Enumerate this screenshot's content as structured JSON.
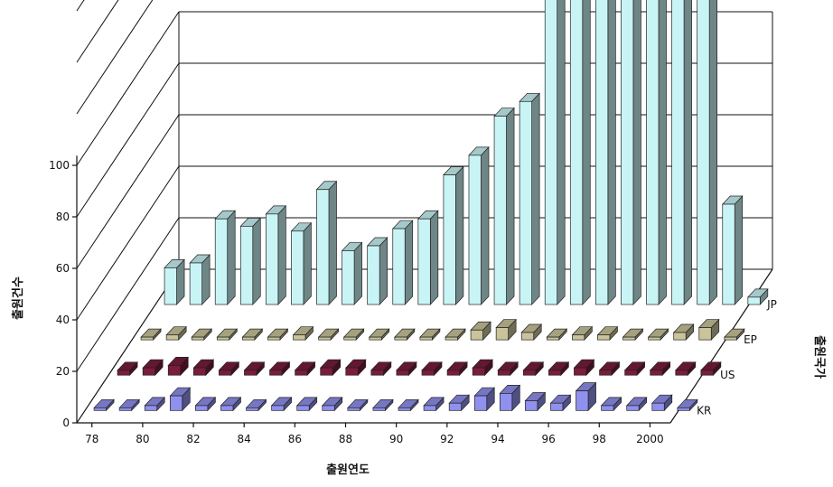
{
  "chart_data": {
    "type": "bar",
    "style": "3d-grouped-depth",
    "categories": [
      "78",
      "79",
      "80",
      "81",
      "82",
      "83",
      "84",
      "85",
      "86",
      "87",
      "88",
      "89",
      "90",
      "91",
      "92",
      "93",
      "94",
      "95",
      "96",
      "97",
      "98",
      "99",
      "2000",
      "01"
    ],
    "x_tick_labels": [
      "78",
      "80",
      "82",
      "84",
      "86",
      "88",
      "90",
      "92",
      "94",
      "96",
      "98",
      "2000"
    ],
    "y_ticks": [
      0,
      20,
      40,
      60,
      80,
      100
    ],
    "ylim": [
      0,
      180
    ],
    "xlabel": "출원연도",
    "ylabel": "출원건수",
    "zlabel": "출원국가",
    "series": [
      {
        "name": "KR",
        "color": "#9090ee",
        "values": [
          1,
          1,
          2,
          6,
          2,
          2,
          1,
          2,
          2,
          2,
          1,
          1,
          1,
          2,
          3,
          6,
          7,
          4,
          3,
          8,
          2,
          2,
          3,
          0
        ]
      },
      {
        "name": "US",
        "color": "#7a1c3a",
        "values": [
          2,
          3,
          4,
          3,
          2,
          2,
          2,
          2,
          3,
          3,
          2,
          2,
          2,
          2,
          3,
          2,
          2,
          2,
          3,
          2,
          2,
          2,
          2,
          2
        ]
      },
      {
        "name": "EP",
        "color": "#c9c49a",
        "values": [
          1,
          2,
          1,
          1,
          1,
          1,
          2,
          1,
          1,
          1,
          1,
          1,
          1,
          4,
          5,
          3,
          1,
          2,
          2,
          1,
          1,
          3,
          5,
          1
        ]
      },
      {
        "name": "JP",
        "color": "#c9f4f6",
        "values": [
          15,
          17,
          35,
          32,
          37,
          30,
          47,
          22,
          24,
          31,
          35,
          53,
          61,
          77,
          83,
          153,
          151,
          166,
          166,
          146,
          151,
          152,
          41,
          3
        ]
      }
    ]
  }
}
